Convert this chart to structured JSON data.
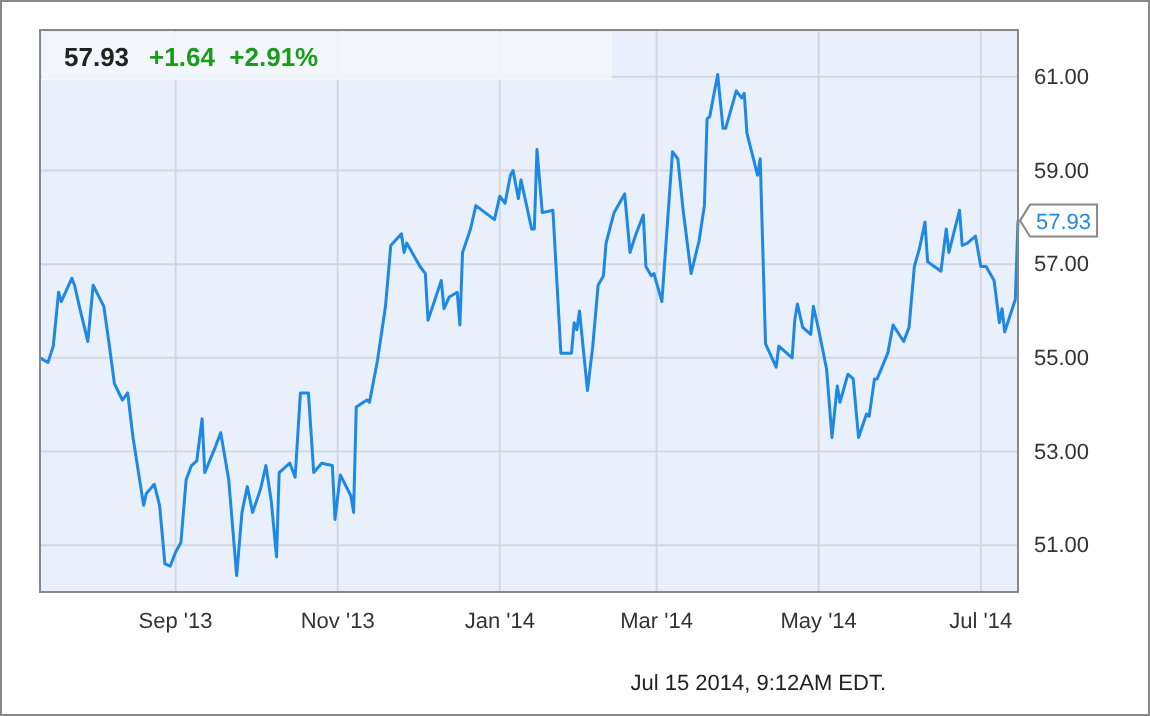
{
  "chart_data": {
    "type": "line",
    "title": "57.93",
    "subtitle": "+1.64  +2.91%",
    "x": [
      "2013-07-12",
      "2013-07-15",
      "2013-07-17",
      "2013-07-19",
      "2013-07-20",
      "2013-07-24",
      "2013-07-25",
      "2013-07-27",
      "2013-07-30",
      "2013-08-01",
      "2013-08-05",
      "2013-08-07",
      "2013-08-09",
      "2013-08-12",
      "2013-08-14",
      "2013-08-16",
      "2013-08-20",
      "2013-08-21",
      "2013-08-24",
      "2013-08-26",
      "2013-08-28",
      "2013-08-30",
      "2013-09-01",
      "2013-09-03",
      "2013-09-05",
      "2013-09-07",
      "2013-09-09",
      "2013-09-11",
      "2013-09-12",
      "2013-09-16",
      "2013-09-18",
      "2013-09-21",
      "2013-09-24",
      "2013-09-26",
      "2013-09-28",
      "2013-09-30",
      "2013-10-03",
      "2013-10-05",
      "2013-10-07",
      "2013-10-09",
      "2013-10-10",
      "2013-10-14",
      "2013-10-16",
      "2013-10-18",
      "2013-10-21",
      "2013-10-23",
      "2013-10-26",
      "2013-10-30",
      "2013-10-31",
      "2013-11-02",
      "2013-11-06",
      "2013-11-07",
      "2013-11-08",
      "2013-11-12",
      "2013-11-13",
      "2013-11-16",
      "2013-11-19",
      "2013-11-21",
      "2013-11-25",
      "2013-11-26",
      "2013-11-27",
      "2013-12-02",
      "2013-12-04",
      "2013-12-05",
      "2013-12-10",
      "2013-12-11",
      "2013-12-13",
      "2013-12-16",
      "2013-12-17",
      "2013-12-18",
      "2013-12-21",
      "2013-12-23",
      "2013-12-30",
      "2014-01-01",
      "2014-01-03",
      "2014-01-05",
      "2014-01-06",
      "2014-01-08",
      "2014-01-09",
      "2014-01-13",
      "2014-01-14",
      "2014-01-15",
      "2014-01-17",
      "2014-01-21",
      "2014-01-24",
      "2014-01-25",
      "2014-01-28",
      "2014-01-29",
      "2014-01-30",
      "2014-01-31",
      "2014-02-03",
      "2014-02-05",
      "2014-02-07",
      "2014-02-09",
      "2014-02-10",
      "2014-02-13",
      "2014-02-17",
      "2014-02-19",
      "2014-02-21",
      "2014-02-24",
      "2014-02-25",
      "2014-02-27",
      "2014-02-28",
      "2014-03-03",
      "2014-03-07",
      "2014-03-09",
      "2014-03-11",
      "2014-03-14",
      "2014-03-17",
      "2014-03-19",
      "2014-03-20",
      "2014-03-21",
      "2014-03-24",
      "2014-03-26",
      "2014-03-27",
      "2014-03-31",
      "2014-04-02",
      "2014-04-03",
      "2014-04-04",
      "2014-04-08",
      "2014-04-09",
      "2014-04-11",
      "2014-04-15",
      "2014-04-16",
      "2014-04-21",
      "2014-04-22",
      "2014-04-23",
      "2014-04-25",
      "2014-04-28",
      "2014-04-29",
      "2014-05-01",
      "2014-05-04",
      "2014-05-06",
      "2014-05-08",
      "2014-05-09",
      "2014-05-12",
      "2014-05-14",
      "2014-05-16",
      "2014-05-19",
      "2014-05-20",
      "2014-05-22",
      "2014-05-23",
      "2014-05-27",
      "2014-05-29",
      "2014-06-02",
      "2014-06-04",
      "2014-06-06",
      "2014-06-08",
      "2014-06-10",
      "2014-06-11",
      "2014-06-16",
      "2014-06-18",
      "2014-06-19",
      "2014-06-23",
      "2014-06-24",
      "2014-06-26",
      "2014-06-29",
      "2014-07-01",
      "2014-07-03",
      "2014-07-06",
      "2014-07-08",
      "2014-07-09",
      "2014-07-10",
      "2014-07-14",
      "2014-07-15"
    ],
    "series": [
      {
        "color": "#1e88e5",
        "values": [
          55.0,
          54.9,
          55.25,
          56.4,
          56.2,
          56.7,
          56.55,
          56.05,
          55.35,
          56.55,
          56.1,
          55.3,
          54.45,
          54.1,
          54.25,
          53.3,
          51.85,
          52.1,
          52.3,
          51.85,
          50.6,
          50.55,
          50.85,
          51.05,
          52.4,
          52.7,
          52.8,
          53.7,
          52.55,
          53.1,
          53.4,
          52.4,
          50.35,
          51.7,
          52.25,
          51.7,
          52.2,
          52.7,
          51.95,
          50.75,
          52.55,
          52.75,
          52.45,
          54.25,
          54.25,
          52.55,
          52.75,
          52.7,
          51.55,
          52.5,
          52.05,
          51.7,
          53.95,
          54.1,
          54.05,
          54.95,
          56.1,
          57.4,
          57.65,
          57.25,
          57.45,
          56.95,
          56.8,
          55.8,
          56.65,
          56.05,
          56.3,
          56.4,
          55.7,
          57.25,
          57.75,
          58.25,
          57.95,
          58.45,
          58.3,
          58.9,
          59.0,
          58.4,
          58.8,
          57.75,
          57.75,
          59.45,
          58.1,
          58.15,
          55.1,
          55.1,
          55.1,
          55.75,
          55.6,
          56.0,
          54.3,
          55.25,
          56.55,
          56.75,
          57.45,
          58.1,
          58.5,
          57.25,
          57.6,
          58.05,
          56.95,
          56.75,
          56.8,
          56.2,
          59.4,
          59.25,
          58.15,
          56.8,
          57.5,
          58.25,
          60.1,
          60.15,
          61.05,
          59.9,
          59.9,
          60.7,
          60.55,
          60.65,
          59.8,
          58.9,
          59.25,
          55.3,
          54.8,
          55.25,
          55.0,
          55.8,
          56.15,
          55.65,
          55.5,
          56.1,
          55.6,
          54.75,
          53.3,
          54.4,
          54.05,
          54.65,
          54.55,
          53.3,
          53.8,
          53.75,
          54.55,
          54.55,
          55.1,
          55.7,
          55.35,
          55.65,
          56.95,
          57.35,
          57.9,
          57.05,
          56.85,
          57.75,
          57.25,
          58.15,
          57.4,
          57.45,
          57.6,
          56.95,
          56.95,
          56.65,
          55.75,
          56.05,
          55.55,
          56.25,
          57.93
        ]
      }
    ],
    "xlim": [
      "2013-07-12",
      "2014-07-15"
    ],
    "xticks": [
      {
        "value": "2013-09-01",
        "label": "Sep '13"
      },
      {
        "value": "2013-11-01",
        "label": "Nov '13"
      },
      {
        "value": "2014-01-01",
        "label": "Jan '14"
      },
      {
        "value": "2014-03-01",
        "label": "Mar '14"
      },
      {
        "value": "2014-05-01",
        "label": "May '14"
      },
      {
        "value": "2014-07-01",
        "label": "Jul '14"
      }
    ],
    "ylim": [
      50,
      62
    ],
    "yticks": [
      {
        "value": 51,
        "label": "51.00"
      },
      {
        "value": 53,
        "label": "53.00"
      },
      {
        "value": 55,
        "label": "55.00"
      },
      {
        "value": 57,
        "label": "57.00"
      },
      {
        "value": 59,
        "label": "59.00"
      },
      {
        "value": 61,
        "label": "61.00"
      }
    ],
    "grid": true,
    "annotations": [
      {
        "text": "57.93",
        "x": "2014-07-15",
        "y": 57.93
      },
      "Jul 15 2014, 9:12AM EDT."
    ]
  }
}
